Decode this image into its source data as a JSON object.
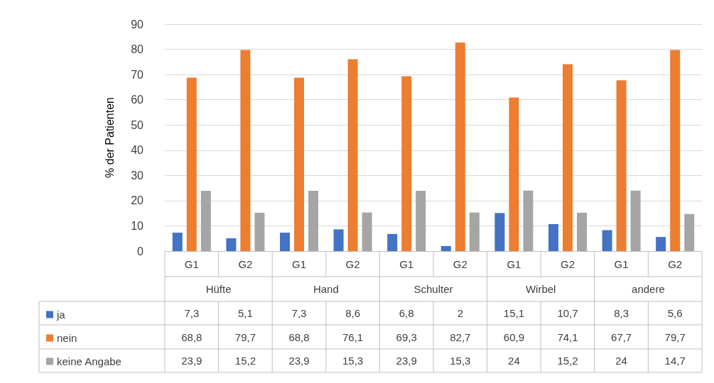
{
  "chart_data": {
    "type": "bar",
    "ylabel": "% der Patienten",
    "categories": [
      "G1",
      "G2",
      "G1",
      "G2",
      "G1",
      "G2",
      "G1",
      "G2",
      "G1",
      "G2"
    ],
    "annotations": [
      "Hüfte",
      "Hand",
      "Schulter",
      "Wirbel",
      "andere"
    ],
    "series": [
      {
        "name": "ja",
        "color": "#4472c4",
        "values": [
          7.3,
          5.1,
          7.3,
          8.6,
          6.8,
          2,
          15.1,
          10.7,
          8.3,
          5.6
        ],
        "value_labels": [
          "7,3",
          "5,1",
          "7,3",
          "8,6",
          "6,8",
          "2",
          "15,1",
          "10,7",
          "8,3",
          "5,6"
        ]
      },
      {
        "name": "nein",
        "color": "#ed7d31",
        "values": [
          68.8,
          79.7,
          68.8,
          76.1,
          69.3,
          82.7,
          60.9,
          74.1,
          67.7,
          79.7
        ],
        "value_labels": [
          "68,8",
          "79,7",
          "68,8",
          "76,1",
          "69,3",
          "82,7",
          "60,9",
          "74,1",
          "67,7",
          "79,7"
        ]
      },
      {
        "name": "keine Angabe",
        "color": "#a5a5a5",
        "values": [
          23.9,
          15.2,
          23.9,
          15.3,
          23.9,
          15.3,
          24,
          15.2,
          24,
          14.7
        ],
        "value_labels": [
          "23,9",
          "15,2",
          "23,9",
          "15,3",
          "23,9",
          "15,3",
          "24",
          "15,2",
          "24",
          "14,7"
        ]
      }
    ],
    "ylim": [
      0,
      90
    ],
    "yticks": [
      0,
      10,
      20,
      30,
      40,
      50,
      60,
      70,
      80,
      90
    ],
    "grid": "y",
    "legend": "bottom left"
  }
}
